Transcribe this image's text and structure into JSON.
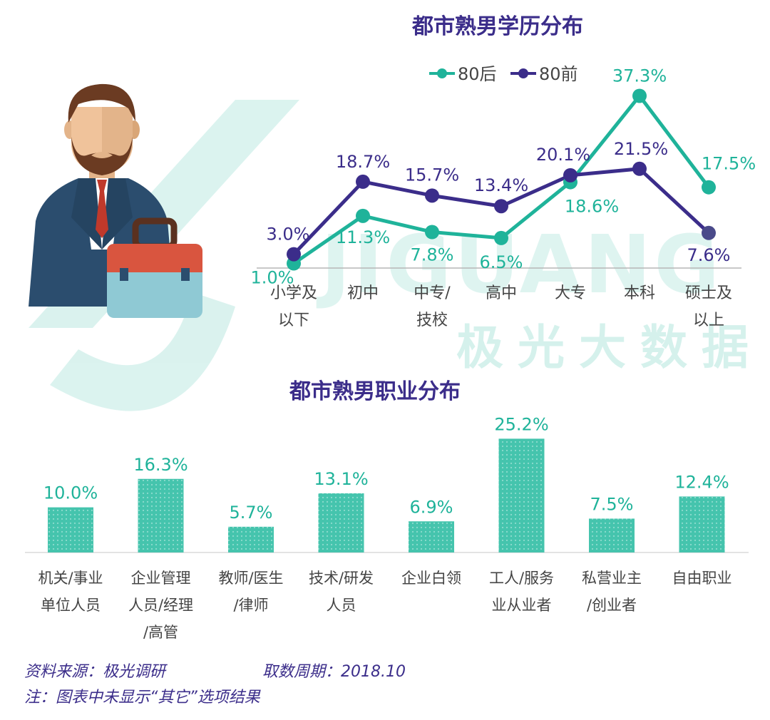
{
  "watermark": {
    "brand_latin": "JIGUANG",
    "brand_cn": "极光大数据"
  },
  "colors": {
    "series_80s": "#1fb39a",
    "series_pre80": "#3b2d8a",
    "title": "#3b2d8a",
    "bar": "#45c4ad"
  },
  "illustration": {
    "icon": "businessman-with-briefcase-icon"
  },
  "chart_data": [
    {
      "type": "line",
      "title": "都市熟男学历分布",
      "categories": [
        "小学及\n以下",
        "初中",
        "中专/\n技校",
        "高中",
        "大专",
        "本科",
        "硕士及\n以上"
      ],
      "series": [
        {
          "name": "80后",
          "values": [
            1.0,
            11.3,
            7.8,
            6.5,
            18.6,
            37.3,
            17.5
          ],
          "labels": [
            "1.0%",
            "11.3%",
            "7.8%",
            "6.5%",
            "18.6%",
            "37.3%",
            "17.5%"
          ],
          "color": "#1fb39a"
        },
        {
          "name": "80前",
          "values": [
            3.0,
            18.7,
            15.7,
            13.4,
            20.1,
            21.5,
            7.6
          ],
          "labels": [
            "3.0%",
            "18.7%",
            "15.7%",
            "13.4%",
            "20.1%",
            "21.5%",
            "7.6%"
          ],
          "color": "#3b2d8a"
        }
      ],
      "ylim": [
        0,
        40
      ],
      "legend": "top-center",
      "grid": false
    },
    {
      "type": "bar",
      "title": "都市熟男职业分布",
      "categories": [
        "机关/事业\n单位人员",
        "企业管理\n人员/经理\n/高管",
        "教师/医生\n/律师",
        "技术/研发\n人员",
        "企业白领",
        "工人/服务\n业从业者",
        "私营业主\n/创业者",
        "自由职业"
      ],
      "values": [
        10.0,
        16.3,
        5.7,
        13.1,
        6.9,
        25.2,
        7.5,
        12.4
      ],
      "labels": [
        "10.0%",
        "16.3%",
        "5.7%",
        "13.1%",
        "6.9%",
        "25.2%",
        "7.5%",
        "12.4%"
      ],
      "ylim": [
        0,
        30
      ],
      "grid": false
    }
  ],
  "footer": {
    "source": "资料来源：极光调研",
    "period": "取数周期：2018.10",
    "note": "注：图表中未显示“其它”选项结果"
  }
}
